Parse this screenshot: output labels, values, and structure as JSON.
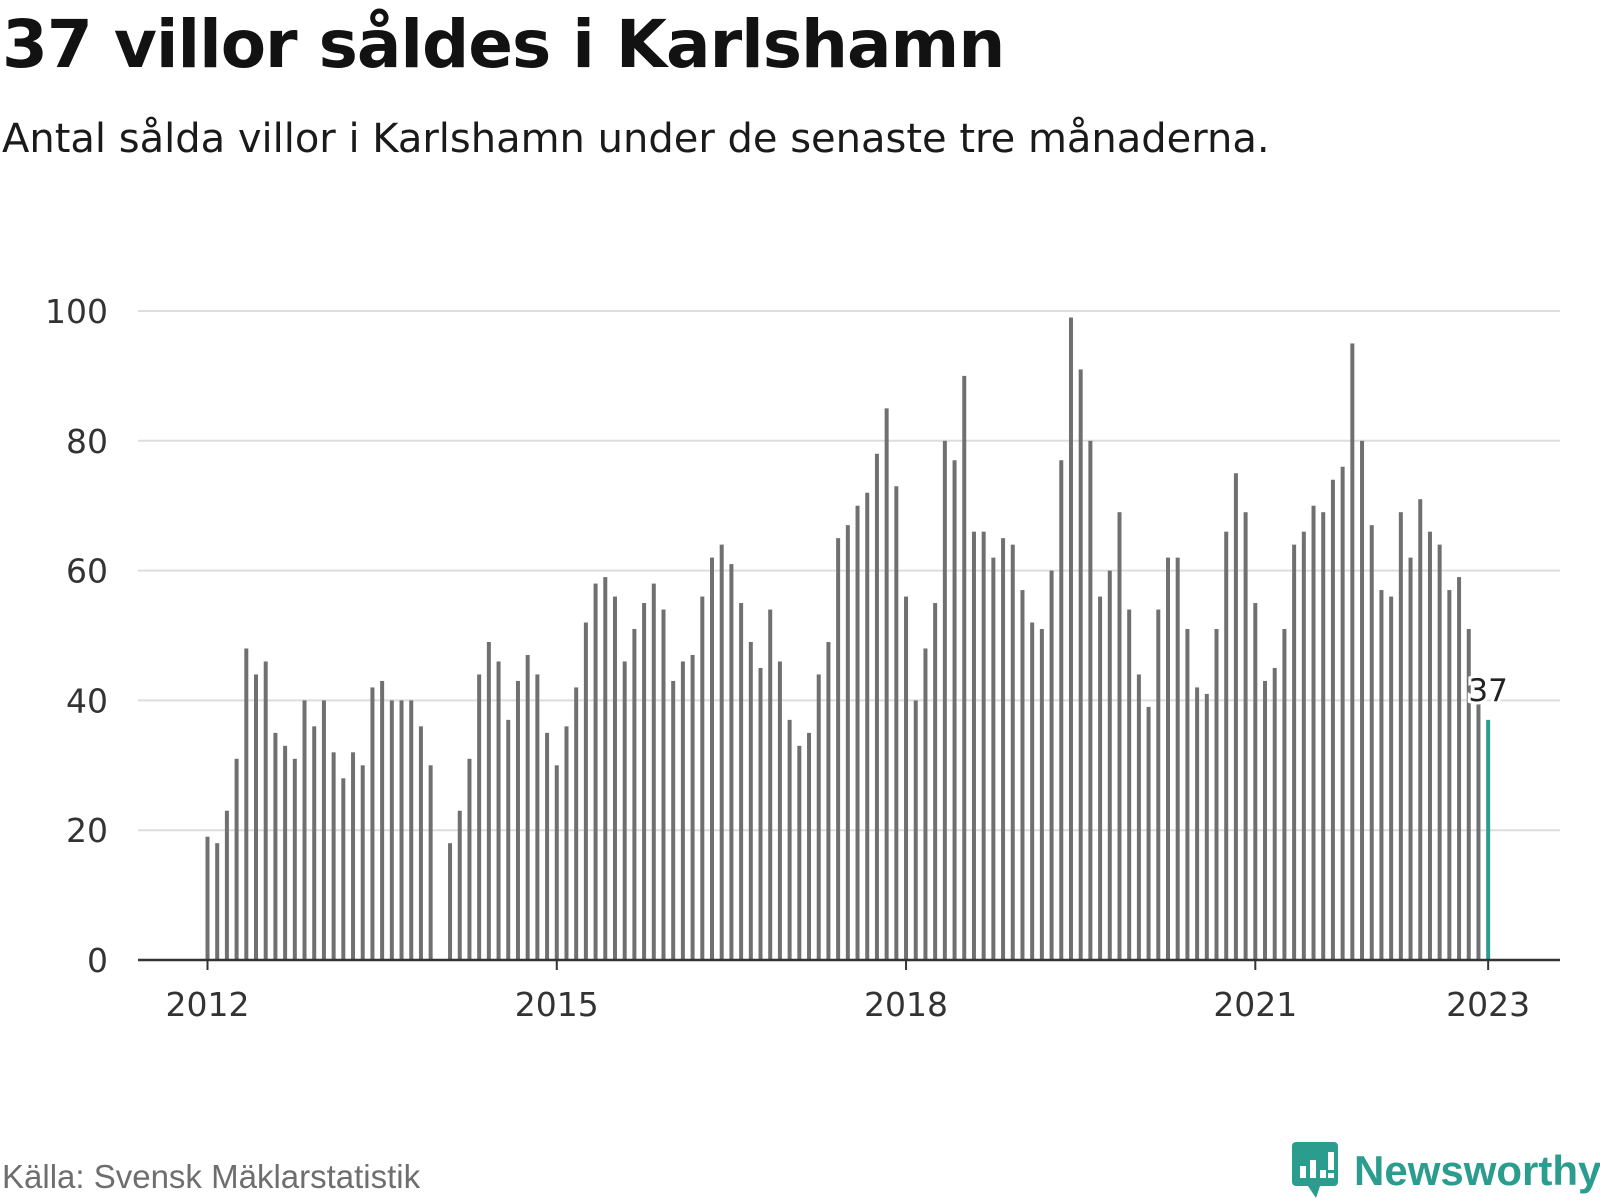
{
  "title": "37 villor såldes i Karlshamn",
  "subtitle": "Antal sålda villor i Karlshamn under de senaste tre månaderna.",
  "source": "Källa: Svensk Mäklarstatistik",
  "brand": "Newsworthy",
  "colors": {
    "bar": "#707070",
    "highlight": "#2a9d8f",
    "grid": "#dddddd",
    "axis": "#333333"
  },
  "chart_data": {
    "type": "bar",
    "x_ticks": [
      "2012",
      "2015",
      "2018",
      "2021",
      "2023"
    ],
    "y_ticks": [
      "0",
      "20",
      "40",
      "60",
      "80",
      "100"
    ],
    "ylim": [
      0,
      100
    ],
    "grid": true,
    "x_start": "2012-01",
    "values": [
      19,
      18,
      23,
      31,
      48,
      44,
      46,
      35,
      33,
      31,
      40,
      36,
      40,
      32,
      28,
      32,
      30,
      42,
      43,
      40,
      40,
      40,
      36,
      30,
      null,
      18,
      23,
      31,
      44,
      49,
      46,
      37,
      43,
      47,
      44,
      35,
      30,
      36,
      42,
      52,
      58,
      59,
      56,
      46,
      51,
      55,
      58,
      54,
      43,
      46,
      47,
      56,
      62,
      64,
      61,
      55,
      49,
      45,
      54,
      46,
      37,
      33,
      35,
      44,
      49,
      65,
      67,
      70,
      72,
      78,
      85,
      73,
      56,
      40,
      48,
      55,
      80,
      77,
      90,
      66,
      66,
      62,
      65,
      64,
      57,
      52,
      51,
      60,
      77,
      99,
      91,
      80,
      56,
      60,
      69,
      54,
      44,
      39,
      54,
      62,
      62,
      51,
      42,
      41,
      51,
      66,
      75,
      69,
      55,
      43,
      45,
      51,
      64,
      66,
      70,
      69,
      74,
      76,
      95,
      80,
      67,
      57,
      56,
      69,
      62,
      71,
      66,
      64,
      57,
      59,
      51,
      40,
      37
    ],
    "highlight_label": "37"
  }
}
